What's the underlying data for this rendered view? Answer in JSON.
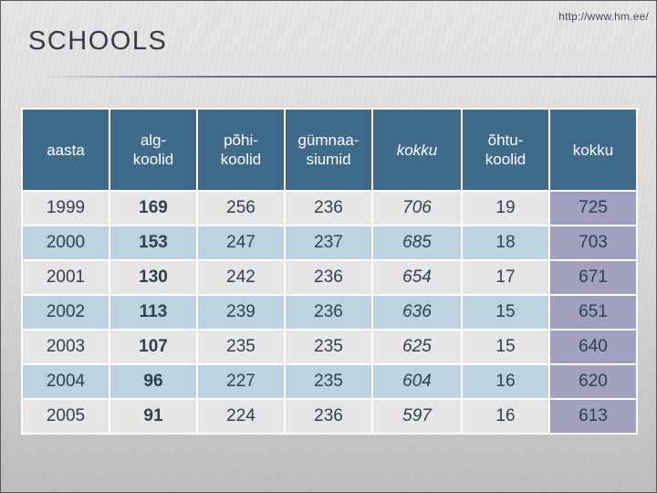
{
  "slide": {
    "source_url": "http://www.hm.ee/",
    "title": "SCHOOLS"
  },
  "colors": {
    "header_bg": "#3f6a8a",
    "row_light": "#e6e6e6",
    "row_blue": "#bdd3e1",
    "total_column": "#a0a0c0",
    "text_dark": "#2f3f50"
  },
  "table": {
    "headers": [
      {
        "line1": "aasta",
        "line2": ""
      },
      {
        "line1": "alg-",
        "line2": "koolid"
      },
      {
        "line1": "põhi-",
        "line2": "koolid"
      },
      {
        "line1": "gümnaa-",
        "line2": "siumid"
      },
      {
        "line1": "kokku",
        "line2": ""
      },
      {
        "line1": "õhtu-",
        "line2": "koolid"
      },
      {
        "line1": "kokku",
        "line2": ""
      }
    ],
    "rows": [
      [
        "1999",
        "169",
        "256",
        "236",
        "706",
        "19",
        "725"
      ],
      [
        "2000",
        "153",
        "247",
        "237",
        "685",
        "18",
        "703"
      ],
      [
        "2001",
        "130",
        "242",
        "236",
        "654",
        "17",
        "671"
      ],
      [
        "2002",
        "113",
        "239",
        "236",
        "636",
        "15",
        "651"
      ],
      [
        "2003",
        "107",
        "235",
        "235",
        "625",
        "15",
        "640"
      ],
      [
        "2004",
        "96",
        "227",
        "235",
        "604",
        "16",
        "620"
      ],
      [
        "2005",
        "91",
        "224",
        "236",
        "597",
        "16",
        "613"
      ]
    ]
  }
}
